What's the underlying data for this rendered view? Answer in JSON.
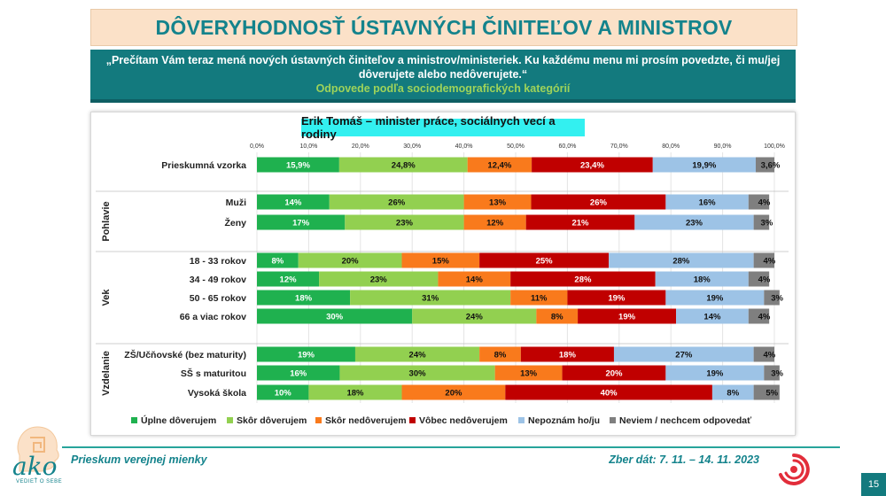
{
  "page": {
    "title": "DÔVERYHODNOSŤ ÚSTAVNÝCH ČINITEĽOV A MINISTROV",
    "question": "„Prečítam Vám teraz mená nových ústavných činiteľov a ministrov/ministeriek. Ku každému menu mi prosím povedzte, či mu/jej dôverujete alebo nedôverujete.“",
    "subtitle": "Odpovede podľa sociodemografických kategórií",
    "footer_left": "Prieskum verejnej mienky",
    "footer_right": "Zber dát: 7. 11. – 14. 11. 2023",
    "page_number": "15",
    "logo_text": "ako",
    "logo_sub": "VEDIEŤ O SEBE"
  },
  "chart_data": {
    "type": "stacked-bar-horizontal",
    "title": "Erik Tomáš – minister práce, sociálnych vecí a rodiny",
    "xlim": [
      0,
      100
    ],
    "ticks": [
      "0,0%",
      "10,0%",
      "20,0%",
      "30,0%",
      "40,0%",
      "50,0%",
      "60,0%",
      "70,0%",
      "80,0%",
      "90,0%",
      "100,0%"
    ],
    "legend": [
      {
        "name": "Úplne dôverujem",
        "color": "#1fb14f"
      },
      {
        "name": "Skôr dôverujem",
        "color": "#92d050"
      },
      {
        "name": "Skôr nedôverujem",
        "color": "#f97a1c"
      },
      {
        "name": "Vôbec nedôverujem",
        "color": "#c00000"
      },
      {
        "name": "Nepoznám ho/ju",
        "color": "#9dc3e6"
      },
      {
        "name": "Neviem / nechcem odpovedať",
        "color": "#7f7f7f"
      }
    ],
    "groups": [
      {
        "name": "",
        "rows": [
          {
            "label": "Prieskumná vzorka",
            "values": [
              15.9,
              24.8,
              12.4,
              23.4,
              19.9,
              3.6
            ],
            "labels": [
              "15,9%",
              "24,8%",
              "12,4%",
              "23,4%",
              "19,9%",
              "3,6%"
            ]
          }
        ]
      },
      {
        "name": "Pohlavie",
        "rows": [
          {
            "label": "Muži",
            "values": [
              14,
              26,
              13,
              26,
              16,
              4
            ],
            "labels": [
              "14%",
              "26%",
              "13%",
              "26%",
              "16%",
              "4%"
            ]
          },
          {
            "label": "Ženy",
            "values": [
              17,
              23,
              12,
              21,
              23,
              3
            ],
            "labels": [
              "17%",
              "23%",
              "12%",
              "21%",
              "23%",
              "3%"
            ]
          }
        ]
      },
      {
        "name": "Vek",
        "rows": [
          {
            "label": "18 - 33 rokov",
            "values": [
              8,
              20,
              15,
              25,
              28,
              4
            ],
            "labels": [
              "8%",
              "20%",
              "15%",
              "25%",
              "28%",
              "4%"
            ]
          },
          {
            "label": "34 - 49 rokov",
            "values": [
              12,
              23,
              14,
              28,
              18,
              4
            ],
            "labels": [
              "12%",
              "23%",
              "14%",
              "28%",
              "18%",
              "4%"
            ]
          },
          {
            "label": "50 - 65 rokov",
            "values": [
              18,
              31,
              11,
              19,
              19,
              3
            ],
            "labels": [
              "18%",
              "31%",
              "11%",
              "19%",
              "19%",
              "3%"
            ]
          },
          {
            "label": "66 a viac rokov",
            "values": [
              30,
              24,
              8,
              19,
              14,
              4
            ],
            "labels": [
              "30%",
              "24%",
              "8%",
              "19%",
              "14%",
              "4%"
            ]
          }
        ]
      },
      {
        "name": "Vzdelanie",
        "rows": [
          {
            "label": "ZŠ/Učňovské (bez maturity)",
            "values": [
              19,
              24,
              8,
              18,
              27,
              4
            ],
            "labels": [
              "19%",
              "24%",
              "8%",
              "18%",
              "27%",
              "4%"
            ]
          },
          {
            "label": "SŠ s maturitou",
            "values": [
              16,
              30,
              13,
              20,
              19,
              3
            ],
            "labels": [
              "16%",
              "30%",
              "13%",
              "20%",
              "19%",
              "3%"
            ]
          },
          {
            "label": "Vysoká škola",
            "values": [
              10,
              18,
              20,
              40,
              8,
              5
            ],
            "labels": [
              "10%",
              "18%",
              "20%",
              "40%",
              "8%",
              "5%"
            ]
          }
        ]
      }
    ]
  }
}
